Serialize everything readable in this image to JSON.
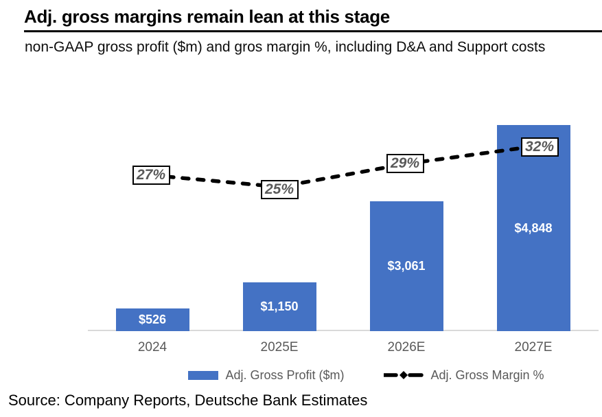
{
  "header": {
    "title": "Adj. gross margins remain lean at this stage",
    "subtitle": "non-GAAP gross profit ($m) and gros margin %, including D&A and Support costs"
  },
  "chart_data": {
    "type": "bar",
    "categories": [
      "2024",
      "2025E",
      "2026E",
      "2027E"
    ],
    "series": [
      {
        "name": "Adj. Gross Profit ($m)",
        "type": "bar",
        "values": [
          526,
          1150,
          3061,
          4848
        ],
        "data_labels": [
          "$526",
          "$1,150",
          "$3,061",
          "$4,848"
        ],
        "color": "#4472C4"
      },
      {
        "name": "Adj. Gross Margin %",
        "type": "line",
        "values": [
          27,
          25,
          29,
          32
        ],
        "data_labels": [
          "27%",
          "25%",
          "29%",
          "32%"
        ],
        "color": "#000000",
        "style": "dashed",
        "marker": "diamond"
      }
    ],
    "ylim": [
      0,
      4900
    ],
    "grid": false,
    "legend_position": "bottom",
    "title": "Adj. gross margins remain lean at this stage",
    "xlabel": "",
    "ylabel": ""
  },
  "legend": {
    "bar_label": "Adj. Gross Profit ($m)",
    "line_label": "Adj. Gross Margin %"
  },
  "footer": {
    "source": "Source: Company Reports, Deutsche Bank Estimates"
  },
  "colors": {
    "bar": "#4472C4",
    "line": "#000000",
    "gray_text": "#595959",
    "baseline": "#D9D9D9",
    "pct_box_border": "#000000"
  }
}
